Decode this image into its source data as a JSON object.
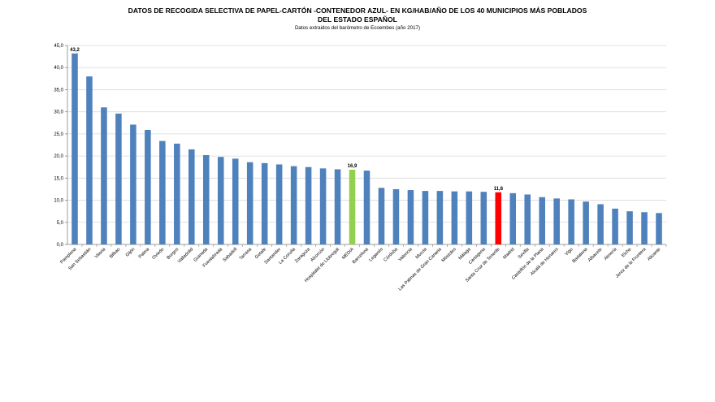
{
  "chart_data": {
    "type": "bar",
    "title": "DATOS DE RECOGIDA SELECTIVA DE PAPEL-CARTÓN -CONTENEDOR AZUL- EN KG/HAB/AÑO DE LOS 40 MUNICIPIOS MÁS POBLADOS",
    "title2": "DEL ESTADO ESPAÑOL",
    "subtitle": "Datos extraidos del barómetro de Ecoembes (año 2017)",
    "xlabel": "",
    "ylabel": "",
    "ylim": [
      0,
      45
    ],
    "yticks": [
      "0,0",
      "5,0",
      "10,0",
      "15,0",
      "20,0",
      "25,0",
      "30,0",
      "35,0",
      "40,0",
      "45,0"
    ],
    "grid": true,
    "categories": [
      "Pamplona",
      "San Sebastián",
      "Vitoria",
      "Bilbao",
      "Gijón",
      "Palma",
      "Oviedo",
      "Burgos",
      "Valladolid",
      "Granada",
      "Fuenlabrada",
      "Sabadell",
      "Tarrasa",
      "Getafe",
      "Santander",
      "La Coruña",
      "Zaragoza",
      "Alcorcón",
      "Hospitalet de Llobregat",
      "MEDIA",
      "Barcelona",
      "Leganés",
      "Córdoba",
      "Valencia",
      "Murcia",
      "Las Palmas de Gran Canaria",
      "Móstoles",
      "Málaga",
      "Cartagena",
      "Santa Cruz de Tenerife",
      "Madrid",
      "Sevilla",
      "Castellón de la Plana",
      "Alcalá de Henares",
      "Vigo",
      "Badalona",
      "Albacete",
      "Almería",
      "Elche",
      "Jerez de la Frontera",
      "Alicante"
    ],
    "values": [
      43.2,
      38.0,
      31.0,
      29.6,
      27.1,
      25.9,
      23.4,
      22.8,
      21.5,
      20.2,
      19.8,
      19.4,
      18.6,
      18.4,
      18.1,
      17.7,
      17.5,
      17.2,
      17.0,
      16.9,
      16.7,
      12.8,
      12.5,
      12.3,
      12.1,
      12.1,
      12.0,
      12.0,
      11.9,
      11.8,
      11.6,
      11.3,
      10.7,
      10.4,
      10.2,
      9.7,
      9.1,
      8.1,
      7.5,
      7.3,
      7.1
    ],
    "data_labels": {
      "Pamplona": "43,2",
      "MEDIA": "16,9",
      "Santa Cruz de Tenerife": "11,8"
    },
    "colors": {
      "default": "#4F81BD",
      "MEDIA": "#92D050",
      "Santa Cruz de Tenerife": "#FF0000"
    }
  }
}
